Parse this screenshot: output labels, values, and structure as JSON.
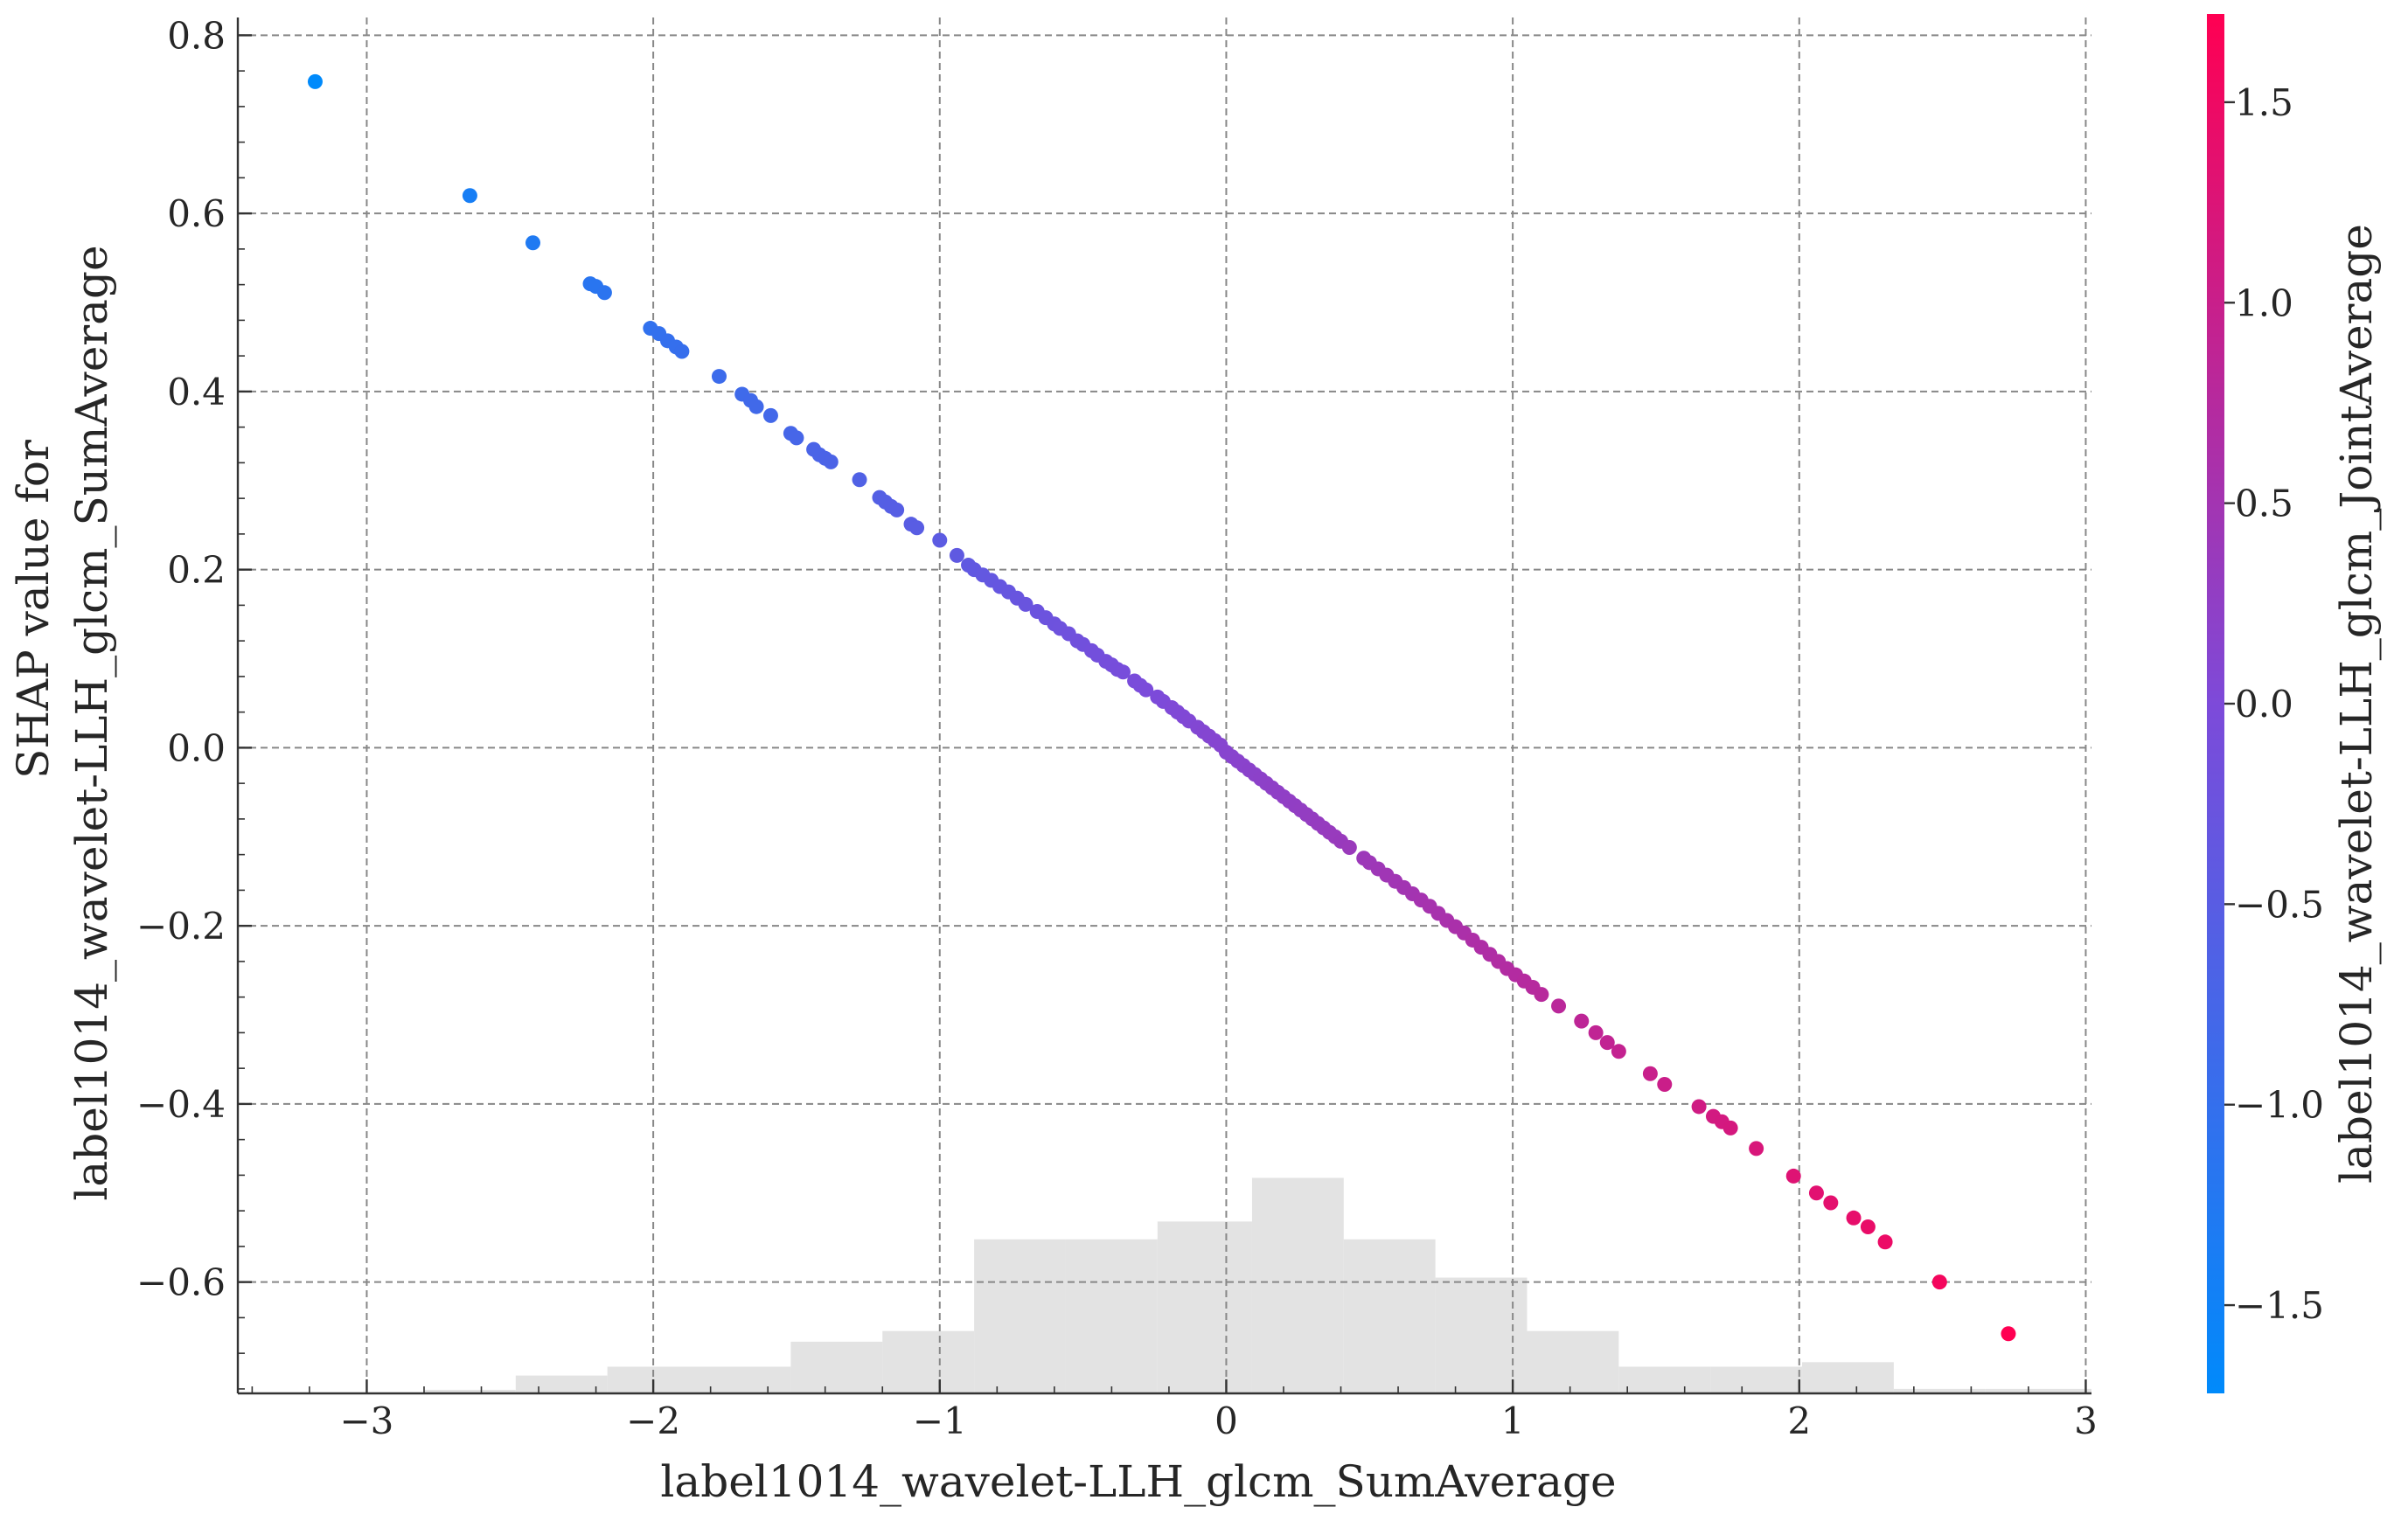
{
  "chart_data": {
    "type": "scatter",
    "title": "",
    "xlabel": "label1014_wavelet-LLH_glcm_SumAverage",
    "ylabel_lines": [
      "SHAP value for",
      "label1014_wavelet-LLH_glcm_SumAverage"
    ],
    "colorbar_label": "label1014_wavelet-LLH_glcm_JointAverage",
    "xlim": [
      -3.45,
      3.02
    ],
    "ylim": [
      -0.725,
      0.82
    ],
    "x_ticks": [
      -3,
      -2,
      -1,
      0,
      1,
      2,
      3
    ],
    "x_tick_labels": [
      "−3",
      "−2",
      "−1",
      "0",
      "1",
      "2",
      "3"
    ],
    "y_ticks": [
      -0.6,
      -0.4,
      -0.2,
      0.0,
      0.2,
      0.4,
      0.6,
      0.8
    ],
    "y_tick_labels": [
      "−0.6",
      "−0.4",
      "−0.2",
      "0.0",
      "0.2",
      "0.4",
      "0.6",
      "0.8"
    ],
    "grid": true,
    "colorbar": {
      "range": [
        -1.72,
        1.72
      ],
      "ticks": [
        -1.5,
        -1.0,
        -0.5,
        0.0,
        0.5,
        1.0,
        1.5
      ],
      "tick_labels": [
        "−1.5",
        "−1.0",
        "−0.5",
        "0.0",
        "0.5",
        "1.0",
        "1.5"
      ],
      "colors": [
        "#008afb",
        "#7d4ad9",
        "#ff0052"
      ]
    },
    "histogram": {
      "color": "#e3e3e3",
      "bins": [
        {
          "x0": -3.45,
          "x1": -3.12,
          "top": -0.725
        },
        {
          "x0": -3.12,
          "x1": -2.8,
          "top": -0.726
        },
        {
          "x0": -2.8,
          "x1": -2.48,
          "top": -0.721
        },
        {
          "x0": -2.48,
          "x1": -2.16,
          "top": -0.705
        },
        {
          "x0": -2.16,
          "x1": -1.84,
          "top": -0.695
        },
        {
          "x0": -1.84,
          "x1": -1.52,
          "top": -0.695
        },
        {
          "x0": -1.52,
          "x1": -1.2,
          "top": -0.667
        },
        {
          "x0": -1.2,
          "x1": -0.88,
          "top": -0.655
        },
        {
          "x0": -0.88,
          "x1": -0.56,
          "top": -0.552
        },
        {
          "x0": -0.56,
          "x1": -0.24,
          "top": -0.552
        },
        {
          "x0": -0.24,
          "x1": 0.09,
          "top": -0.532
        },
        {
          "x0": 0.09,
          "x1": 0.41,
          "top": -0.483
        },
        {
          "x0": 0.41,
          "x1": 0.73,
          "top": -0.552
        },
        {
          "x0": 0.73,
          "x1": 1.05,
          "top": -0.595
        },
        {
          "x0": 1.05,
          "x1": 1.37,
          "top": -0.655
        },
        {
          "x0": 1.37,
          "x1": 1.69,
          "top": -0.695
        },
        {
          "x0": 1.69,
          "x1": 2.01,
          "top": -0.695
        },
        {
          "x0": 2.01,
          "x1": 2.33,
          "top": -0.69
        },
        {
          "x0": 2.33,
          "x1": 2.65,
          "top": -0.72
        },
        {
          "x0": 2.65,
          "x1": 3.02,
          "top": -0.72
        }
      ]
    },
    "points_x": [
      -3.18,
      -2.64,
      -2.42,
      -2.22,
      -2.2,
      -2.17,
      -2.01,
      -1.98,
      -1.95,
      -1.92,
      -1.9,
      -1.77,
      -1.69,
      -1.66,
      -1.64,
      -1.59,
      -1.52,
      -1.5,
      -1.44,
      -1.42,
      -1.4,
      -1.38,
      -1.28,
      -1.21,
      -1.19,
      -1.17,
      -1.15,
      -1.1,
      -1.08,
      -1.0,
      -0.94,
      -0.9,
      -0.88,
      -0.85,
      -0.82,
      -0.79,
      -0.76,
      -0.73,
      -0.7,
      -0.66,
      -0.63,
      -0.6,
      -0.58,
      -0.55,
      -0.52,
      -0.5,
      -0.47,
      -0.45,
      -0.42,
      -0.4,
      -0.38,
      -0.36,
      -0.32,
      -0.3,
      -0.28,
      -0.24,
      -0.22,
      -0.19,
      -0.17,
      -0.15,
      -0.13,
      -0.1,
      -0.08,
      -0.06,
      -0.04,
      -0.02,
      0.0,
      0.02,
      0.04,
      0.06,
      0.08,
      0.1,
      0.12,
      0.14,
      0.16,
      0.18,
      0.2,
      0.22,
      0.24,
      0.26,
      0.28,
      0.3,
      0.32,
      0.34,
      0.36,
      0.38,
      0.4,
      0.43,
      0.48,
      0.5,
      0.53,
      0.56,
      0.59,
      0.62,
      0.65,
      0.68,
      0.71,
      0.74,
      0.77,
      0.8,
      0.83,
      0.86,
      0.89,
      0.92,
      0.95,
      0.98,
      1.01,
      1.04,
      1.07,
      1.1,
      1.16,
      1.24,
      1.29,
      1.33,
      1.37,
      1.48,
      1.53,
      1.65,
      1.7,
      1.73,
      1.76,
      1.85,
      1.98,
      2.06,
      2.11,
      2.19,
      2.24,
      2.3,
      2.49,
      2.73
    ],
    "points_y": [
      0.748,
      0.62,
      0.567,
      0.521,
      0.518,
      0.511,
      0.471,
      0.465,
      0.457,
      0.45,
      0.445,
      0.417,
      0.397,
      0.39,
      0.383,
      0.373,
      0.353,
      0.348,
      0.335,
      0.329,
      0.325,
      0.321,
      0.301,
      0.281,
      0.276,
      0.271,
      0.267,
      0.251,
      0.247,
      0.233,
      0.216,
      0.205,
      0.2,
      0.194,
      0.188,
      0.181,
      0.175,
      0.168,
      0.161,
      0.153,
      0.146,
      0.139,
      0.134,
      0.128,
      0.12,
      0.116,
      0.109,
      0.104,
      0.097,
      0.093,
      0.088,
      0.085,
      0.075,
      0.07,
      0.065,
      0.057,
      0.052,
      0.045,
      0.04,
      0.035,
      0.03,
      0.023,
      0.018,
      0.013,
      0.008,
      0.003,
      -0.005,
      -0.01,
      -0.015,
      -0.02,
      -0.025,
      -0.03,
      -0.035,
      -0.04,
      -0.045,
      -0.05,
      -0.055,
      -0.06,
      -0.065,
      -0.07,
      -0.075,
      -0.08,
      -0.085,
      -0.09,
      -0.095,
      -0.1,
      -0.105,
      -0.112,
      -0.124,
      -0.129,
      -0.136,
      -0.143,
      -0.15,
      -0.157,
      -0.164,
      -0.171,
      -0.178,
      -0.186,
      -0.194,
      -0.201,
      -0.208,
      -0.216,
      -0.224,
      -0.232,
      -0.24,
      -0.248,
      -0.255,
      -0.262,
      -0.269,
      -0.277,
      -0.29,
      -0.307,
      -0.32,
      -0.331,
      -0.341,
      -0.366,
      -0.378,
      -0.403,
      -0.414,
      -0.42,
      -0.427,
      -0.45,
      -0.481,
      -0.5,
      -0.511,
      -0.528,
      -0.538,
      -0.555,
      -0.6,
      -0.658
    ]
  }
}
